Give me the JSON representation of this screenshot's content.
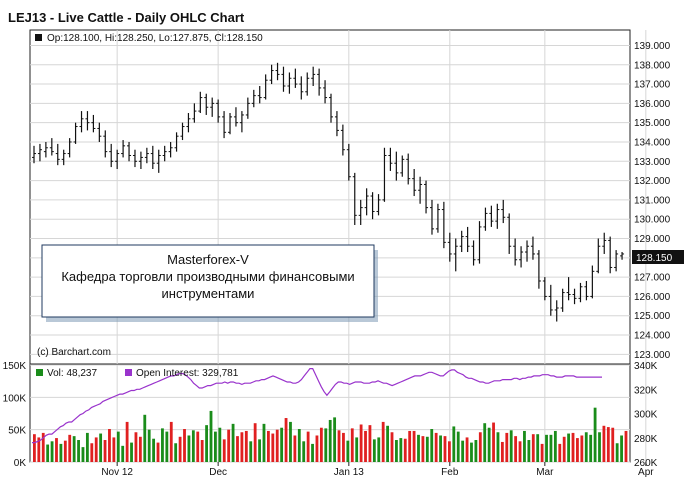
{
  "chart_data": [
    {
      "type": "ohlc",
      "title": "LEJ13 - Live Cattle - Daily OHLC Chart",
      "legend": {
        "label": "Op:128.100, Hi:128.250, Lo:127.875, Cl:128.150",
        "placement": "top-left"
      },
      "price_tag": "128.150",
      "credit": "(c) Barchart.com",
      "ylim": [
        122.5,
        139.8
      ],
      "y_ticks": [
        "123.000",
        "124.000",
        "125.000",
        "126.000",
        "127.000",
        "128.000",
        "129.000",
        "130.000",
        "131.000",
        "132.000",
        "133.000",
        "134.000",
        "135.000",
        "136.000",
        "137.000",
        "138.000",
        "139.000"
      ],
      "grid": true,
      "annotation": [
        "Masterforex-V",
        "Кафедра торговли производными финансовыми",
        "инструментами"
      ],
      "ohlc": [
        [
          133.2,
          133.8,
          132.9,
          133.4
        ],
        [
          133.4,
          133.9,
          133.0,
          133.6
        ],
        [
          133.5,
          134.0,
          133.2,
          133.7
        ],
        [
          133.7,
          134.2,
          133.3,
          133.5
        ],
        [
          133.4,
          133.9,
          132.8,
          133.1
        ],
        [
          133.1,
          133.6,
          132.8,
          133.4
        ],
        [
          133.4,
          134.2,
          133.2,
          134.0
        ],
        [
          134.0,
          135.0,
          133.9,
          134.8
        ],
        [
          134.8,
          135.6,
          134.5,
          135.2
        ],
        [
          135.2,
          135.6,
          134.6,
          135.0
        ],
        [
          135.0,
          135.4,
          134.5,
          134.7
        ],
        [
          134.7,
          135.0,
          134.0,
          134.3
        ],
        [
          134.3,
          134.6,
          133.2,
          133.5
        ],
        [
          133.5,
          133.9,
          132.7,
          133.0
        ],
        [
          133.0,
          133.6,
          132.6,
          133.4
        ],
        [
          133.4,
          134.1,
          133.2,
          133.8
        ],
        [
          133.8,
          134.0,
          133.0,
          133.3
        ],
        [
          133.3,
          133.6,
          132.7,
          133.0
        ],
        [
          133.0,
          133.5,
          132.6,
          133.2
        ],
        [
          133.2,
          133.7,
          132.9,
          133.4
        ],
        [
          133.4,
          133.8,
          132.6,
          132.9
        ],
        [
          132.9,
          133.6,
          132.4,
          133.3
        ],
        [
          133.3,
          133.8,
          133.0,
          133.5
        ],
        [
          133.5,
          134.0,
          133.2,
          133.7
        ],
        [
          133.7,
          134.5,
          133.5,
          134.3
        ],
        [
          134.3,
          135.0,
          134.1,
          134.8
        ],
        [
          134.8,
          135.5,
          134.5,
          135.2
        ],
        [
          135.2,
          136.0,
          135.0,
          135.6
        ],
        [
          135.6,
          136.6,
          135.5,
          136.3
        ],
        [
          136.3,
          136.5,
          135.4,
          135.8
        ],
        [
          135.8,
          136.3,
          135.3,
          136.0
        ],
        [
          136.0,
          136.2,
          135.0,
          135.3
        ],
        [
          135.3,
          135.6,
          134.2,
          134.5
        ],
        [
          134.5,
          135.5,
          134.4,
          135.3
        ],
        [
          135.3,
          135.8,
          134.8,
          135.0
        ],
        [
          135.0,
          135.6,
          134.5,
          135.4
        ],
        [
          135.4,
          136.3,
          135.2,
          136.0
        ],
        [
          136.0,
          136.7,
          135.8,
          136.4
        ],
        [
          136.4,
          136.9,
          136.0,
          136.3
        ],
        [
          136.3,
          137.5,
          136.2,
          137.2
        ],
        [
          137.2,
          138.0,
          137.0,
          137.7
        ],
        [
          137.7,
          138.1,
          137.2,
          137.5
        ],
        [
          137.5,
          137.9,
          136.6,
          136.9
        ],
        [
          136.9,
          137.6,
          136.5,
          137.3
        ],
        [
          137.3,
          137.8,
          136.8,
          137.0
        ],
        [
          137.0,
          137.4,
          136.2,
          136.6
        ],
        [
          136.6,
          137.6,
          136.4,
          137.3
        ],
        [
          137.3,
          137.9,
          136.9,
          137.5
        ],
        [
          137.5,
          137.8,
          136.4,
          136.8
        ],
        [
          136.8,
          137.2,
          136.0,
          136.3
        ],
        [
          136.3,
          136.5,
          135.0,
          135.3
        ],
        [
          135.3,
          135.6,
          134.3,
          134.6
        ],
        [
          134.6,
          134.9,
          133.3,
          133.6
        ],
        [
          133.6,
          133.9,
          132.0,
          132.2
        ],
        [
          132.2,
          132.4,
          129.7,
          130.2
        ],
        [
          130.2,
          131.0,
          129.7,
          130.6
        ],
        [
          130.6,
          131.6,
          130.2,
          131.2
        ],
        [
          131.2,
          131.4,
          130.0,
          130.4
        ],
        [
          130.4,
          131.3,
          130.2,
          131.0
        ],
        [
          131.0,
          133.7,
          130.9,
          133.3
        ],
        [
          133.3,
          133.7,
          132.5,
          132.9
        ],
        [
          132.9,
          133.5,
          132.0,
          132.4
        ],
        [
          132.4,
          133.3,
          132.2,
          133.1
        ],
        [
          133.1,
          133.4,
          131.8,
          132.1
        ],
        [
          132.1,
          132.6,
          131.2,
          131.5
        ],
        [
          131.5,
          132.2,
          130.8,
          131.8
        ],
        [
          131.8,
          132.0,
          130.3,
          130.6
        ],
        [
          130.6,
          131.0,
          129.2,
          129.5
        ],
        [
          129.5,
          130.8,
          129.3,
          130.5
        ],
        [
          130.5,
          130.9,
          128.5,
          128.8
        ],
        [
          128.8,
          129.3,
          127.8,
          128.2
        ],
        [
          128.2,
          129.0,
          127.3,
          128.6
        ],
        [
          128.6,
          129.4,
          128.3,
          129.1
        ],
        [
          129.1,
          129.6,
          128.3,
          128.6
        ],
        [
          128.6,
          128.9,
          127.6,
          127.9
        ],
        [
          127.9,
          129.9,
          127.7,
          129.6
        ],
        [
          129.6,
          130.6,
          129.4,
          130.3
        ],
        [
          130.3,
          130.7,
          129.6,
          129.9
        ],
        [
          129.9,
          130.8,
          129.5,
          130.5
        ],
        [
          130.5,
          131.0,
          129.8,
          130.1
        ],
        [
          130.1,
          130.3,
          128.2,
          128.6
        ],
        [
          128.6,
          129.0,
          127.6,
          127.9
        ],
        [
          127.9,
          128.6,
          127.5,
          128.3
        ],
        [
          128.3,
          128.9,
          127.8,
          128.6
        ],
        [
          128.6,
          129.1,
          127.9,
          128.2
        ],
        [
          128.2,
          128.4,
          126.4,
          126.8
        ],
        [
          126.8,
          127.0,
          125.8,
          126.0
        ],
        [
          126.0,
          126.6,
          125.0,
          125.3
        ],
        [
          125.3,
          125.8,
          124.7,
          125.4
        ],
        [
          125.4,
          126.4,
          125.2,
          126.2
        ],
        [
          126.2,
          127.0,
          125.8,
          126.1
        ],
        [
          126.1,
          126.4,
          125.6,
          125.9
        ],
        [
          125.9,
          126.7,
          125.7,
          126.5
        ],
        [
          126.5,
          126.8,
          125.8,
          126.0
        ],
        [
          126.0,
          127.6,
          125.9,
          127.3
        ],
        [
          127.3,
          129.0,
          127.2,
          128.6
        ],
        [
          128.6,
          129.3,
          128.2,
          128.9
        ],
        [
          128.9,
          129.1,
          127.2,
          127.5
        ],
        [
          127.5,
          128.4,
          127.3,
          128.2
        ],
        [
          128.1,
          128.3,
          127.9,
          128.2
        ]
      ]
    },
    {
      "type": "bar+line",
      "legend": [
        {
          "label": "Vol: 48,237",
          "color": "#1a8c1a"
        },
        {
          "label": "Open Interest: 329,781",
          "color": "#9933cc"
        }
      ],
      "volume_ylim": [
        0,
        150000
      ],
      "volume_ticks": [
        "0K",
        "50K",
        "100K",
        "150K"
      ],
      "oi_ylim": [
        260000,
        340000
      ],
      "oi_ticks": [
        "260K",
        "280K",
        "300K",
        "320K",
        "340K"
      ],
      "x_tick_labels": [
        {
          "label": "Nov 12",
          "bar": 14
        },
        {
          "label": "Dec",
          "bar": 31
        },
        {
          "label": "Jan 13",
          "bar": 53
        },
        {
          "label": "Feb",
          "bar": 70
        },
        {
          "label": "Mar",
          "bar": 86
        },
        {
          "label": "Apr",
          "bar": 103
        }
      ],
      "volume": [
        43000,
        38000,
        45000,
        27000,
        32000,
        37000,
        28000,
        33000,
        42000,
        40000,
        34000,
        23000,
        45000,
        29000,
        38000,
        44000,
        34000,
        51000,
        38000,
        47000,
        25000,
        62000,
        30000,
        46000,
        39000,
        73000,
        50000,
        36000,
        30000,
        52000,
        47000,
        62000,
        29000,
        39000,
        51000,
        41000,
        49000,
        47000,
        34000,
        57000,
        79000,
        47000,
        53000,
        35000,
        50000,
        59000,
        40000,
        46000,
        48000,
        32000,
        60000,
        35000,
        59000,
        48000,
        44000,
        50000,
        53000,
        68000,
        62000,
        41000,
        51000,
        32000,
        47000,
        28000,
        41000,
        53000,
        52000,
        65000,
        69000,
        49000,
        45000,
        33000,
        52000,
        38000,
        58000,
        48000,
        57000,
        35000,
        38000,
        62000,
        56000,
        46000,
        34000,
        37000,
        36000,
        48000,
        48000,
        42000,
        40000,
        39000,
        51000,
        45000,
        41000,
        40000,
        32000,
        55000,
        47000,
        33000,
        38000,
        30000,
        34000,
        46000,
        60000,
        53000,
        61000,
        46000,
        31000,
        45000,
        49000,
        40000,
        32000,
        48000,
        34000,
        43000,
        43000,
        28000,
        42000,
        42000,
        48000,
        28000,
        39000,
        44000,
        45000,
        37000,
        41000,
        46000,
        42000,
        84000,
        46000,
        56000,
        54000,
        53000,
        29000,
        41000,
        48000
      ],
      "volume_colors": "rrrggrgrrggggrrgrrrggrgrrgggrggrgrrggrrggggrrgrrrgrggrrrgrgrggrgrrgggrrgrgrrrggrgrggrrrgrggrgrrgggrggrggrgrrgrrggrgrgggrrgrrrgggg",
      "open_interest": [
        276000,
        276000,
        277000,
        278000,
        280000,
        282000,
        283000,
        283000,
        285000,
        287000,
        289000,
        290000,
        292000,
        293000,
        293000,
        295000,
        297000,
        299000,
        300000,
        302000,
        303000,
        305000,
        306000,
        307000,
        308000,
        310000,
        311000,
        312000,
        313000,
        314000,
        315000,
        316000,
        316000,
        317000,
        318000,
        319000,
        319000,
        320000,
        320000,
        321000,
        322000,
        323000,
        324000,
        325000,
        326000,
        327000,
        328000,
        329000,
        330000,
        331000,
        331000,
        332000,
        333000,
        333000,
        332000,
        330000,
        328000,
        325000,
        323000,
        321000,
        321000,
        322000,
        323000,
        323000,
        324000,
        325000,
        325000,
        325000,
        326000,
        325000,
        326000,
        326000,
        325000,
        325000,
        324000,
        325000,
        325000,
        325000,
        326000,
        327000,
        327000,
        328000,
        328000,
        329000,
        330000,
        331000,
        330000,
        329000,
        328000,
        327000,
        326000,
        326000,
        325000,
        325000,
        326000,
        328000,
        331000,
        334000,
        337000,
        337000,
        332000,
        327000,
        322000,
        318000,
        315000,
        318000,
        321000,
        324000,
        326000,
        326000,
        325000,
        325000,
        324000,
        325000,
        326000,
        326000,
        326000,
        325000,
        325000,
        325000,
        326000,
        326000,
        327000,
        326000,
        325000,
        325000,
        324000,
        323000,
        324000,
        325000,
        326000,
        327000,
        328000,
        329000,
        330000,
        331000,
        331000,
        331000,
        332000,
        333000,
        334000,
        334000,
        333000,
        332000,
        331000,
        331000,
        333000,
        335000,
        336000,
        336000,
        334000,
        333000,
        332000,
        330000,
        329000,
        329000,
        328000,
        327000,
        326000,
        326000,
        325000,
        325000,
        326000,
        327000,
        327000,
        327000,
        328000,
        328000,
        328000,
        328000,
        329000,
        329000,
        328000,
        329000,
        329000,
        330000,
        330000,
        331000,
        331000,
        331000,
        332000,
        332000,
        332000,
        331000,
        331000,
        330000,
        330000,
        330000,
        331000,
        331000,
        331000,
        331000,
        330000,
        330000,
        330000,
        330000,
        330000,
        330000,
        330000,
        330000,
        330000,
        330000
      ]
    }
  ]
}
